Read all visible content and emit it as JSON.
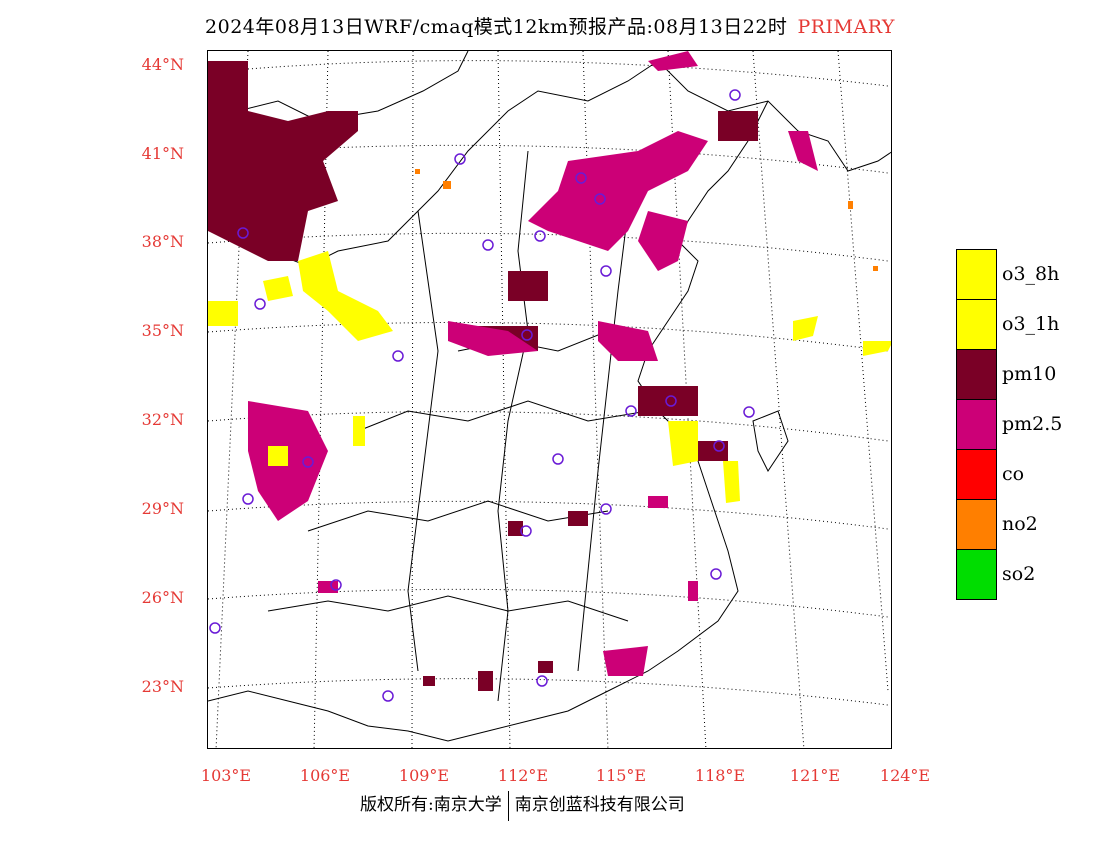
{
  "title": {
    "main": "2024年08月13日WRF/cmaq模式12km预报产品:08月13日22时",
    "tag": "PRIMARY"
  },
  "lat_labels": [
    "44°N",
    "41°N",
    "38°N",
    "35°N",
    "32°N",
    "29°N",
    "26°N",
    "23°N"
  ],
  "lon_labels": [
    "103°E",
    "106°E",
    "109°E",
    "112°E",
    "115°E",
    "118°E",
    "121°E",
    "124°E"
  ],
  "legend": [
    {
      "label": "o3_8h",
      "color": "#ffff00"
    },
    {
      "label": "o3_1h",
      "color": "#ffff00"
    },
    {
      "label": "pm10",
      "color": "#7a0026"
    },
    {
      "label": "pm2.5",
      "color": "#cc0077"
    },
    {
      "label": "co",
      "color": "#ff0000"
    },
    {
      "label": "no2",
      "color": "#ff7f00"
    },
    {
      "label": "so2",
      "color": "#00dd00"
    }
  ],
  "footer": {
    "left": "版权所有:南京大学",
    "right": "南京创蓝科技有限公司"
  }
}
